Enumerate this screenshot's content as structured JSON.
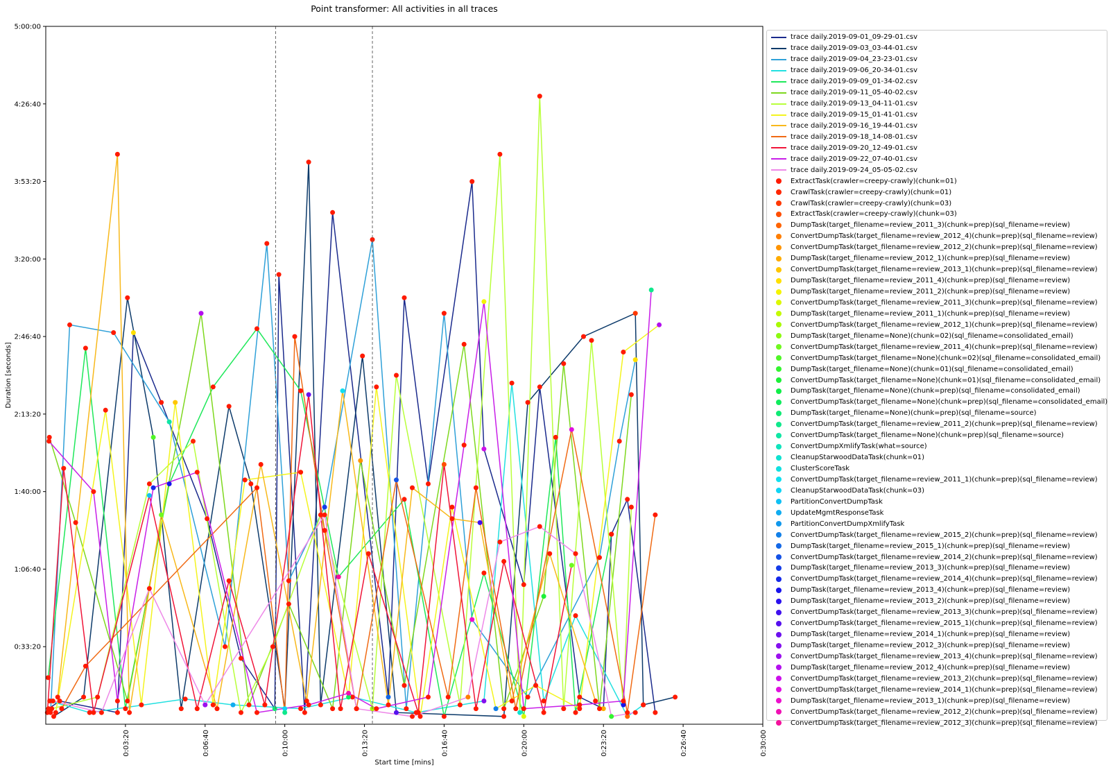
{
  "chart_data": {
    "type": "line",
    "title": "Point transformer: All activities in all traces",
    "xlabel": "Start time [mins]",
    "ylabel": "Duration [seconds]",
    "xlim": [
      0,
      1800
    ],
    "ylim": [
      0,
      18000
    ],
    "x_ticks": [
      {
        "value": 200,
        "label": "0:03:20"
      },
      {
        "value": 400,
        "label": "0:06:40"
      },
      {
        "value": 600,
        "label": "0:10:00"
      },
      {
        "value": 800,
        "label": "0:13:20"
      },
      {
        "value": 1000,
        "label": "0:16:40"
      },
      {
        "value": 1200,
        "label": "0:20:00"
      },
      {
        "value": 1400,
        "label": "0:23:20"
      },
      {
        "value": 1600,
        "label": "0:26:40"
      },
      {
        "value": 1800,
        "label": "0:30:00"
      }
    ],
    "y_ticks": [
      {
        "value": 2000,
        "label": "0:33:20"
      },
      {
        "value": 4000,
        "label": "1:06:40"
      },
      {
        "value": 6000,
        "label": "1:40:00"
      },
      {
        "value": 8000,
        "label": "2:13:20"
      },
      {
        "value": 10000,
        "label": "2:46:40"
      },
      {
        "value": 12000,
        "label": "3:20:00"
      },
      {
        "value": 14000,
        "label": "3:53:20"
      },
      {
        "value": 16000,
        "label": "4:26:40"
      },
      {
        "value": 18000,
        "label": "5:00:00"
      }
    ],
    "vlines": [
      577,
      820
    ],
    "legend_position": "outside-right",
    "series": [
      {
        "name": "trace daily.2019-09-01_09-29-01.csv",
        "color": "#1a2a8c",
        "x": [
          7,
          35,
          180,
          220,
          290,
          405,
          490,
          575,
          585,
          650,
          720,
          860,
          900,
          960,
          1070,
          1100,
          1200,
          1240,
          1340,
          1400,
          1420,
          1460,
          1530
        ],
        "y": [
          400,
          600,
          300,
          10100,
          8300,
          5300,
          1700,
          400,
          11600,
          300,
          13200,
          700,
          11000,
          6200,
          14000,
          7100,
          3600,
          8700,
          700,
          400,
          4900,
          5800,
          300
        ]
      },
      {
        "name": "trace daily.2019-09-03_03-44-01.csv",
        "color": "#0c3a6a",
        "x": [
          20,
          95,
          205,
          270,
          340,
          460,
          515,
          600,
          660,
          690,
          795,
          880,
          1150,
          1210,
          1350,
          1480,
          1500,
          1580
        ],
        "y": [
          200,
          700,
          11000,
          7400,
          400,
          8200,
          6200,
          400,
          14500,
          500,
          9500,
          300,
          200,
          8300,
          10000,
          10600,
          500,
          700
        ]
      },
      {
        "name": "trace daily.2019-09-04_23-23-01.csv",
        "color": "#2ea0d8",
        "x": [
          12,
          60,
          170,
          310,
          450,
          555,
          610,
          700,
          820,
          905,
          1000,
          1070,
          1210,
          1390,
          1440,
          1480
        ],
        "y": [
          300,
          10300,
          10100,
          7800,
          2000,
          12400,
          3700,
          5600,
          12500,
          400,
          10600,
          2700,
          700,
          4300,
          7300,
          9400
        ]
      },
      {
        "name": "trace daily.2019-09-06_20-34-01.csv",
        "color": "#21e0e0",
        "x": [
          10,
          110,
          350,
          470,
          640,
          770,
          930,
          1100,
          1170,
          1250,
          1330,
          1460,
          1500
        ],
        "y": [
          600,
          300,
          650,
          500,
          400,
          700,
          300,
          600,
          8800,
          600,
          2800,
          200,
          500
        ]
      },
      {
        "name": "trace daily.2019-09-09_01-34-02.csv",
        "color": "#1ee85a",
        "x": [
          6,
          100,
          200,
          310,
          420,
          530,
          640,
          735,
          900,
          1000,
          1100,
          1200,
          1280,
          1330,
          1420
        ],
        "y": [
          1200,
          9700,
          400,
          6200,
          8700,
          10200,
          8600,
          3800,
          5800,
          200,
          3900,
          200,
          7400,
          300,
          4900
        ]
      },
      {
        "name": "trace daily.2019-09-11_05-40-02.csv",
        "color": "#7ed81e",
        "x": [
          9,
          75,
          205,
          390,
          510,
          610,
          720,
          790,
          900,
          1050,
          1150,
          1250,
          1300,
          1390,
          1470
        ],
        "y": [
          7400,
          5200,
          600,
          10600,
          500,
          3100,
          400,
          6800,
          1000,
          9800,
          400,
          3300,
          9300,
          400,
          8500
        ]
      },
      {
        "name": "trace daily.2019-09-13_04-11-01.csv",
        "color": "#b8ff3a",
        "x": [
          15,
          130,
          260,
          370,
          490,
          570,
          690,
          820,
          880,
          1040,
          1140,
          1190,
          1240,
          1300,
          1370,
          1450,
          1470
        ],
        "y": [
          400,
          700,
          6200,
          7300,
          300,
          2000,
          5400,
          400,
          9000,
          500,
          14700,
          300,
          16200,
          400,
          9900,
          500,
          5600
        ]
      },
      {
        "name": "trace daily.2019-09-15_01-41-01.csv",
        "color": "#f4f41e",
        "x": [
          25,
          150,
          240,
          325,
          420,
          500,
          640,
          760,
          830,
          940,
          1020,
          1130,
          1230,
          1340,
          1450,
          1540
        ],
        "y": [
          300,
          8100,
          500,
          8300,
          500,
          6300,
          6500,
          700,
          8700,
          200,
          5600,
          400,
          1000,
          400,
          9600,
          10300
        ]
      },
      {
        "name": "trace daily.2019-09-16_19-44-01.csv",
        "color": "#f8b81a",
        "x": [
          30,
          180,
          210,
          290,
          430,
          540,
          655,
          745,
          860,
          920,
          1020,
          1090,
          1170,
          1265,
          1380
        ],
        "y": [
          700,
          14700,
          300,
          5400,
          400,
          6700,
          600,
          8600,
          500,
          6100,
          5300,
          5200,
          600,
          4400,
          600
        ]
      },
      {
        "name": "trace daily.2019-09-18_14-08-01.csv",
        "color": "#f06a14",
        "x": [
          40,
          100,
          530,
          600,
          625,
          700,
          780,
          880,
          1010,
          1080,
          1180,
          1320,
          1460,
          1530
        ],
        "y": [
          400,
          1500,
          6100,
          300,
          10000,
          5000,
          400,
          6300,
          700,
          6100,
          400,
          7600,
          300,
          5400
        ]
      },
      {
        "name": "trace daily.2019-09-20_12-49-01.csv",
        "color": "#f01438",
        "x": [
          4,
          45,
          120,
          260,
          380,
          460,
          550,
          660,
          740,
          810,
          935,
          1000,
          1080,
          1150,
          1250,
          1320
        ],
        "y": [
          300,
          6600,
          300,
          5900,
          400,
          3700,
          500,
          8500,
          400,
          4400,
          300,
          6700,
          400,
          4200,
          300,
          4100
        ]
      },
      {
        "name": "trace daily.2019-09-22_07-40-01.csv",
        "color": "#c81ee8",
        "x": [
          8,
          120,
          180,
          270,
          380,
          530,
          660,
          760,
          830,
          960,
          1050,
          1100,
          1200,
          1340,
          1450,
          1520
        ],
        "y": [
          7300,
          6000,
          600,
          6100,
          6500,
          300,
          500,
          800,
          400,
          700,
          7200,
          10900,
          400,
          500,
          600,
          11200
        ]
      },
      {
        "name": "trace daily.2019-09-24_05-05-02.csv",
        "color": "#ee88e8",
        "x": [
          18,
          140,
          260,
          400,
          700,
          780,
          920,
          1060,
          1140,
          1240,
          1330,
          1420,
          1480
        ],
        "y": [
          600,
          300,
          3500,
          500,
          5400,
          400,
          200,
          700,
          4700,
          5100,
          4400,
          200,
          300
        ]
      }
    ],
    "point_categories": [
      {
        "name": "ExtractTask(crawler=creepy-crawly)(chunk=01)",
        "color": "#ff1a00"
      },
      {
        "name": "CrawlTask(crawler=creepy-crawly)(chunk=01)",
        "color": "#ff2600"
      },
      {
        "name": "CrawlTask(crawler=creepy-crawly)(chunk=03)",
        "color": "#ff3800"
      },
      {
        "name": "ExtractTask(crawler=creepy-crawly)(chunk=03)",
        "color": "#ff4e00"
      },
      {
        "name": "DumpTask(target_filename=review_2011_3)(chunk=prep)(sql_filename=review)",
        "color": "#ff6400"
      },
      {
        "name": "ConvertDumpTask(target_filename=review_2012_4)(chunk=prep)(sql_filename=review)",
        "color": "#ff7e00"
      },
      {
        "name": "ConvertDumpTask(target_filename=review_2012_2)(chunk=prep)(sql_filename=review)",
        "color": "#ff9400"
      },
      {
        "name": "DumpTask(target_filename=review_2012_1)(chunk=prep)(sql_filename=review)",
        "color": "#ffac00"
      },
      {
        "name": "ConvertDumpTask(target_filename=review_2013_1)(chunk=prep)(sql_filename=review)",
        "color": "#ffc600"
      },
      {
        "name": "DumpTask(target_filename=review_2011_4)(chunk=prep)(sql_filename=review)",
        "color": "#ffe000"
      },
      {
        "name": "DumpTask(target_filename=review_2011_2)(chunk=prep)(sql_filename=review)",
        "color": "#f4f400"
      },
      {
        "name": "ConvertDumpTask(target_filename=review_2011_3)(chunk=prep)(sql_filename=review)",
        "color": "#dcf800"
      },
      {
        "name": "DumpTask(target_filename=review_2011_1)(chunk=prep)(sql_filename=review)",
        "color": "#c4fa00"
      },
      {
        "name": "ConvertDumpTask(target_filename=review_2012_1)(chunk=prep)(sql_filename=review)",
        "color": "#a8fa00"
      },
      {
        "name": "DumpTask(target_filename=None)(chunk=02)(sql_filename=consolidated_email)",
        "color": "#8cfa10"
      },
      {
        "name": "ConvertDumpTask(target_filename=review_2011_4)(chunk=prep)(sql_filename=review)",
        "color": "#70f820"
      },
      {
        "name": "ConvertDumpTask(target_filename=None)(chunk=02)(sql_filename=consolidated_email)",
        "color": "#50f628"
      },
      {
        "name": "DumpTask(target_filename=None)(chunk=01)(sql_filename=consolidated_email)",
        "color": "#34f430"
      },
      {
        "name": "ConvertDumpTask(target_filename=None)(chunk=01)(sql_filename=consolidated_email)",
        "color": "#1cf038"
      },
      {
        "name": "DumpTask(target_filename=None)(chunk=prep)(sql_filename=consolidated_email)",
        "color": "#10ee48"
      },
      {
        "name": "ConvertDumpTask(target_filename=None)(chunk=prep)(sql_filename=consolidated_email)",
        "color": "#10ec5c"
      },
      {
        "name": "DumpTask(target_filename=None)(chunk=prep)(sql_filename=source)",
        "color": "#10ea74"
      },
      {
        "name": "ConvertDumpTask(target_filename=review_2011_2)(chunk=prep)(sql_filename=review)",
        "color": "#10e88c"
      },
      {
        "name": "ConvertDumpTask(target_filename=None)(chunk=prep)(sql_filename=source)",
        "color": "#10e6a4"
      },
      {
        "name": "ConvertDumpXmlifyTask(what=source)",
        "color": "#10e4bc"
      },
      {
        "name": "CleanupStarwoodDataTask(chunk=01)",
        "color": "#10e2d0"
      },
      {
        "name": "ClusterScoreTask",
        "color": "#10e0e0"
      },
      {
        "name": "ConvertDumpTask(target_filename=review_2011_1)(chunk=prep)(sql_filename=review)",
        "color": "#10e0f0"
      },
      {
        "name": "CleanupStarwoodDataTask(chunk=03)",
        "color": "#10d4f4"
      },
      {
        "name": "PartitionConvertDumpTask",
        "color": "#10c0f4"
      },
      {
        "name": "UpdateMgmtResponseTask",
        "color": "#10acf0"
      },
      {
        "name": "PartitionConvertDumpXmlifyTask",
        "color": "#1098ec"
      },
      {
        "name": "ConvertDumpTask(target_filename=review_2015_2)(chunk=prep)(sql_filename=review)",
        "color": "#1280e8"
      },
      {
        "name": "DumpTask(target_filename=review_2015_1)(chunk=prep)(sql_filename=review)",
        "color": "#1468e6"
      },
      {
        "name": "ConvertDumpTask(target_filename=review_2014_2)(chunk=prep)(sql_filename=review)",
        "color": "#1452e6"
      },
      {
        "name": "DumpTask(target_filename=review_2013_3)(chunk=prep)(sql_filename=review)",
        "color": "#143ce8"
      },
      {
        "name": "ConvertDumpTask(target_filename=review_2014_4)(chunk=prep)(sql_filename=review)",
        "color": "#1428ea"
      },
      {
        "name": "DumpTask(target_filename=review_2013_4)(chunk=prep)(sql_filename=review)",
        "color": "#1814ec"
      },
      {
        "name": "DumpTask(target_filename=review_2013_2)(chunk=prep)(sql_filename=review)",
        "color": "#2a10ee"
      },
      {
        "name": "ConvertDumpTask(target_filename=review_2013_3)(chunk=prep)(sql_filename=review)",
        "color": "#4010ee"
      },
      {
        "name": "ConvertDumpTask(target_filename=review_2015_1)(chunk=prep)(sql_filename=review)",
        "color": "#5610ee"
      },
      {
        "name": "DumpTask(target_filename=review_2014_1)(chunk=prep)(sql_filename=review)",
        "color": "#6c10ee"
      },
      {
        "name": "DumpTask(target_filename=review_2012_3)(chunk=prep)(sql_filename=review)",
        "color": "#8410ee"
      },
      {
        "name": "ConvertDumpTask(target_filename=review_2013_4)(chunk=prep)(sql_filename=review)",
        "color": "#9c10ee"
      },
      {
        "name": "DumpTask(target_filename=review_2012_4)(chunk=prep)(sql_filename=review)",
        "color": "#b410ee"
      },
      {
        "name": "ConvertDumpTask(target_filename=review_2013_2)(chunk=prep)(sql_filename=review)",
        "color": "#cc10ea"
      },
      {
        "name": "ConvertDumpTask(target_filename=review_2014_1)(chunk=prep)(sql_filename=review)",
        "color": "#e010e0"
      },
      {
        "name": "DumpTask(target_filename=review_2013_1)(chunk=prep)(sql_filename=review)",
        "color": "#ec10cc"
      },
      {
        "name": "ConvertDumpTask(target_filename=review_2012_2)(chunk=prep)(sql_filename=review)",
        "color": "#f010b4"
      },
      {
        "name": "ConvertDumpTask(target_filename=review_2012_3)(chunk=prep)(sql_filename=review)",
        "color": "#f4109c"
      }
    ]
  }
}
